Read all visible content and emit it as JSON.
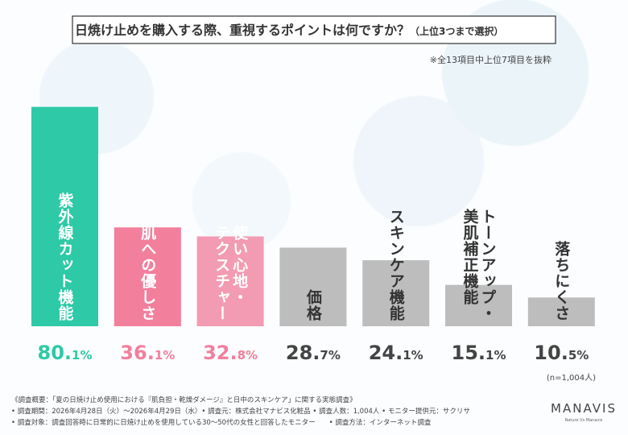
{
  "chart_data": {
    "type": "bar",
    "title": "日焼け止めを購入する際、重視するポイントは何ですか？",
    "title_note": "（上位3つまで選択）",
    "subtitle": "※全13項目中上位7項目を抜粋",
    "categories": [
      "紫外線カット機能",
      "肌への優しさ",
      "使い心地・\nテクスチャー",
      "価格",
      "スキンケア機能",
      "トーンアップ・\n美肌補正機能",
      "落ちにくさ"
    ],
    "values": [
      80.1,
      36.1,
      32.8,
      28.7,
      24.1,
      15.1,
      10.5
    ],
    "value_labels": [
      "80.1%",
      "36.1%",
      "32.8%",
      "28.7%",
      "24.1%",
      "15.1%",
      "10.5%"
    ],
    "colors": [
      "#2ec9a7",
      "#f27f9c",
      "#f39bb2",
      "#bdbdbd",
      "#bdbdbd",
      "#bdbdbd",
      "#bdbdbd"
    ],
    "category_colors": [
      "#ffffff",
      "#ffffff",
      "#ffffff",
      "#333333",
      "#333333",
      "#333333",
      "#333333"
    ],
    "value_label_colors": [
      "#2ec9a7",
      "#f27f9c",
      "#f27f9c",
      "#444444",
      "#444444",
      "#444444",
      "#444444"
    ],
    "sample_note": "(n=1,004人)",
    "footnotes": [
      "《調査概要：「夏の日焼け止め使用における『肌負担・乾燥ダメージ』と日中のスキンケア」に関する実態調査》",
      "• 調査期間：2026年4月28日（火）～2026年4月29日（水）• 調査元：株式会社マナビス化粧品 • 調査人数：1,004人 • モニター提供元：サクリサ",
      "• 調査対象：調査回答時に日常的に日焼け止めを使用している30～50代の女性と回答したモニター　　• 調査方法：インターネット調査"
    ],
    "logo": "MANAVIS",
    "logo_tagline": "Nature Vs Manavis"
  }
}
